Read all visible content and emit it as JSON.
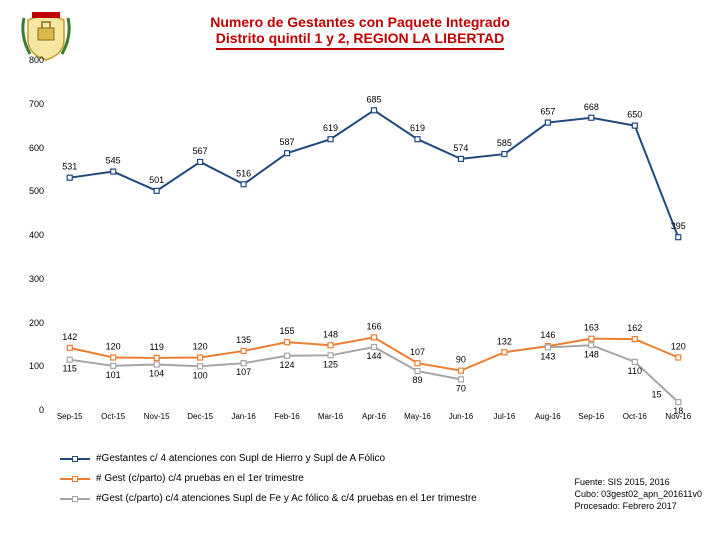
{
  "title": {
    "line1": "Numero de Gestantes con Paquete Integrado",
    "line2": "Distrito quintil 1 y 2, REGION LA LIBERTAD",
    "color": "#c00000",
    "fontsize": 14
  },
  "chart": {
    "type": "line",
    "background_color": "#ffffff",
    "categories": [
      "Sep-15",
      "Oct-15",
      "Nov-15",
      "Dec-15",
      "Jan-16",
      "Feb-16",
      "Mar-16",
      "Apr-16",
      "May-16",
      "Jun-16",
      "Jul-16",
      "Aug-16",
      "Sep-16",
      "Oct-16",
      "Nov-16"
    ],
    "ymin": 0,
    "ymax": 800,
    "ytick_step": 100,
    "xlabel_fontsize": 8,
    "ylabel_fontsize": 9,
    "point_label_fontsize": 9,
    "line_width": 2,
    "marker_size": 5,
    "series": [
      {
        "name": "s1",
        "label": "#Gestantes c/ 4 atenciones con Supl de Hierro y Supl de A Fólico",
        "color": "#1f497d",
        "marker": "square",
        "values": [
          531,
          545,
          501,
          567,
          516,
          587,
          619,
          685,
          619,
          574,
          585,
          657,
          668,
          650,
          395
        ]
      },
      {
        "name": "s2",
        "label": "# Gest (c/parto) c/4 pruebas en el 1er trimestre",
        "color": "#ed7d31",
        "marker": "square",
        "values": [
          142,
          120,
          119,
          120,
          135,
          155,
          148,
          166,
          107,
          90,
          132,
          146,
          163,
          162,
          120
        ]
      },
      {
        "name": "s3",
        "label": "#Gest (c/parto) c/4 atenciones Supl de Fe y Ac fólico & c/4 pruebas en el 1er trimestre",
        "color": "#a5a5a5",
        "marker": "square",
        "values": [
          115,
          101,
          104,
          100,
          107,
          124,
          125,
          144,
          89,
          70,
          null,
          143,
          148,
          110,
          18
        ],
        "extra_point": {
          "index_after": 13,
          "frac": 0.5,
          "value": 15,
          "label": "15"
        }
      }
    ]
  },
  "legend": {
    "fontsize": 10
  },
  "source": {
    "line1": "Fuente: SIS 2015, 2016",
    "line2": "Cubo: 03gest02_apn_201611v0",
    "line3": "Procesado: Febrero 2017"
  },
  "logo": {
    "shield_fill": "#f5e6a0",
    "shield_stroke": "#c49b2e",
    "banner": "#c00000",
    "laurel": "#3a7d2e"
  }
}
